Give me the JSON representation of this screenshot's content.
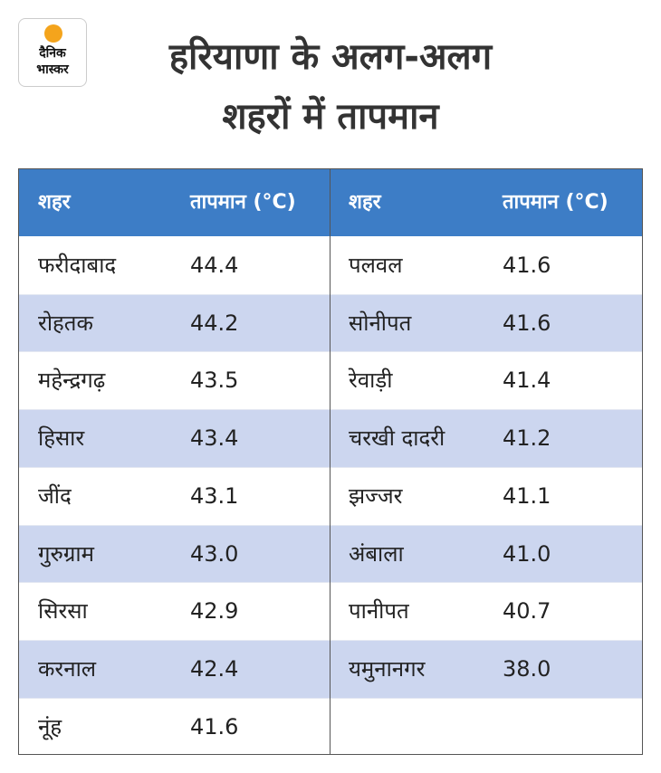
{
  "logo": [
    "दैनिक",
    "भास्कर"
  ],
  "header": {
    "title": [
      "हरियाणा के अलग-अलग",
      "शहरों में तापमान"
    ]
  },
  "table": {
    "columns": [
      "शहर",
      "तापमान (°C)",
      "शहर",
      "तापमान (°C)"
    ],
    "left_rows": [
      [
        "फरीदाबाद",
        "44.4"
      ],
      [
        "रोहतक",
        "44.2"
      ],
      [
        "महेन्द्रगढ़",
        "43.5"
      ],
      [
        "हिसार",
        "43.4"
      ],
      [
        "जींद",
        "43.1"
      ],
      [
        "गुरुग्राम",
        "43.0"
      ],
      [
        "सिरसा",
        "42.9"
      ],
      [
        "करनाल",
        "42.4"
      ],
      [
        "नूंह",
        "41.6"
      ]
    ],
    "right_rows": [
      [
        "पलवल",
        "41.6"
      ],
      [
        "सोनीपत",
        "41.6"
      ],
      [
        "रेवाड़ी",
        "41.4"
      ],
      [
        "चरखी दादरी",
        "41.2"
      ],
      [
        "झज्जर",
        "41.1"
      ],
      [
        "अंबाला",
        "41.0"
      ],
      [
        "पानीपत",
        "40.7"
      ],
      [
        "यमुनानगर",
        "38.0"
      ]
    ]
  }
}
